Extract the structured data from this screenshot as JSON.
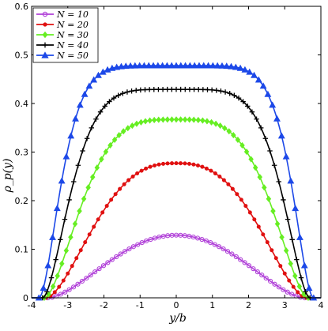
{
  "chart_data": {
    "type": "line",
    "xlabel": "y/b",
    "ylabel": "ρ_p(y)",
    "xlim": [
      -4,
      4
    ],
    "ylim": [
      0,
      0.6
    ],
    "x_ticks": [
      "-4",
      "-3",
      "-2",
      "-1",
      "0",
      "1",
      "2",
      "3",
      "4"
    ],
    "y_ticks": [
      "0",
      "0.1",
      "0.2",
      "0.3",
      "0.4",
      "0.5",
      "0.6"
    ],
    "legend_position": "top-left",
    "grid": false,
    "series": [
      {
        "name": "N = 10",
        "color": "#b040d8",
        "marker": "circle-open",
        "half_width": 3.55,
        "peak": 0.129,
        "flatness": 2.0,
        "start": -3.55,
        "end": 3.55
      },
      {
        "name": "N = 20",
        "color": "#e01010",
        "marker": "circle-filled",
        "half_width": 3.6,
        "peak": 0.277,
        "flatness": 2.6,
        "start": -3.6,
        "end": 3.6
      },
      {
        "name": "N = 30",
        "color": "#66ee22",
        "marker": "diamond",
        "half_width": 3.65,
        "peak": 0.367,
        "flatness": 3.6,
        "start": -3.65,
        "end": 3.65
      },
      {
        "name": "N = 40",
        "color": "#000000",
        "marker": "plus",
        "half_width": 3.7,
        "peak": 0.429,
        "flatness": 5.0,
        "start": -3.7,
        "end": 3.7
      },
      {
        "name": "N = 50",
        "color": "#1c48e8",
        "marker": "triangle",
        "half_width": 3.8,
        "peak": 0.478,
        "flatness": 6.8,
        "start": -3.8,
        "end": 3.8
      }
    ]
  }
}
